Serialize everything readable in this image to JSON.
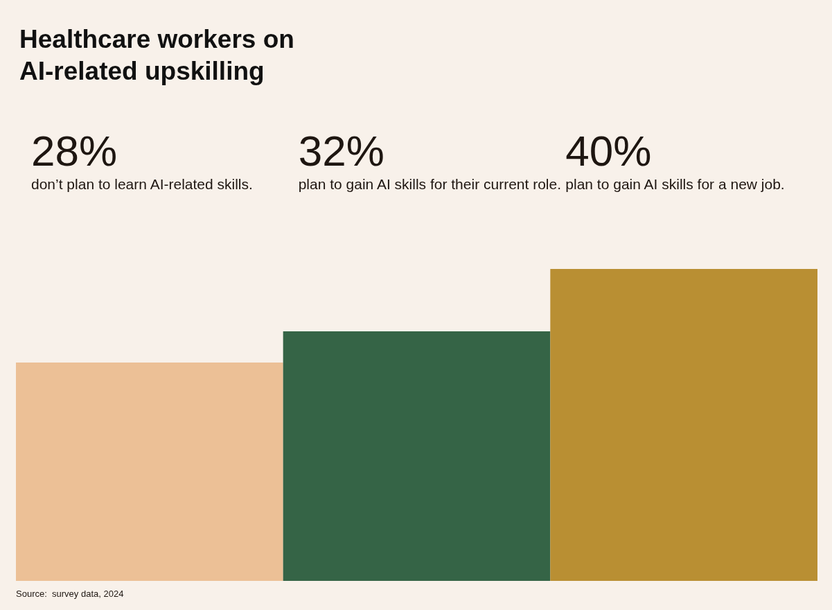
{
  "chart_data": {
    "type": "bar",
    "title": "Healthcare workers on AI-related upskilling",
    "categories": [
      "don’t plan to learn AI-related skills.",
      "plan to gain AI skills for their current role.",
      "plan to gain AI skills for a new job."
    ],
    "values": [
      28,
      32,
      40
    ],
    "colors": [
      "#ecc096",
      "#356446",
      "#b98f33"
    ],
    "value_labels": [
      "28%",
      "32%",
      "40%"
    ],
    "annotations": [
      "Source:  survey data, 2024"
    ]
  }
}
